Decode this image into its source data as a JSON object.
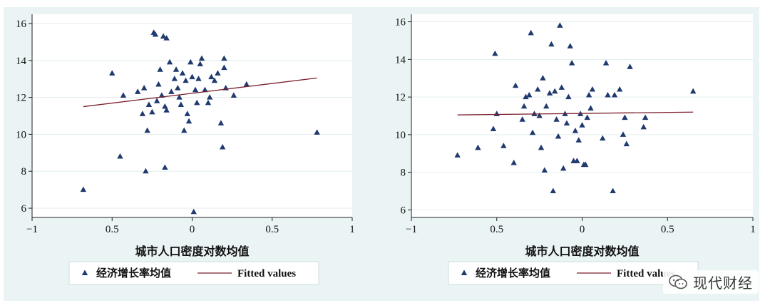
{
  "chart_data": [
    {
      "type": "scatter",
      "xlabel": "城市人口密度对数均值",
      "ylabel": "",
      "xlim": [
        -1,
        1
      ],
      "ylim": [
        5.5,
        16.5
      ],
      "xticks": [
        "−1",
        "0.5",
        "0",
        "0.5",
        "1"
      ],
      "yticks": [
        "6",
        "8",
        "10",
        "12",
        "14",
        "16"
      ],
      "legend_position": "bottom",
      "series": [
        {
          "name": "经济增长率均值",
          "kind": "scatter",
          "color": "#1f3a6e",
          "points": [
            [
              -0.68,
              7.0
            ],
            [
              -0.5,
              13.3
            ],
            [
              -0.45,
              8.8
            ],
            [
              -0.43,
              12.1
            ],
            [
              -0.34,
              12.3
            ],
            [
              -0.31,
              11.1
            ],
            [
              -0.3,
              12.5
            ],
            [
              -0.29,
              8.0
            ],
            [
              -0.28,
              10.2
            ],
            [
              -0.27,
              11.6
            ],
            [
              -0.25,
              11.2
            ],
            [
              -0.24,
              15.5
            ],
            [
              -0.23,
              15.4
            ],
            [
              -0.22,
              11.8
            ],
            [
              -0.21,
              12.7
            ],
            [
              -0.2,
              13.5
            ],
            [
              -0.19,
              12.1
            ],
            [
              -0.18,
              15.3
            ],
            [
              -0.17,
              11.5
            ],
            [
              -0.17,
              8.2
            ],
            [
              -0.16,
              15.2
            ],
            [
              -0.16,
              11.3
            ],
            [
              -0.14,
              13.9
            ],
            [
              -0.13,
              12.3
            ],
            [
              -0.11,
              13.0
            ],
            [
              -0.1,
              13.5
            ],
            [
              -0.09,
              12.5
            ],
            [
              -0.08,
              12.0
            ],
            [
              -0.07,
              11.6
            ],
            [
              -0.06,
              13.3
            ],
            [
              -0.05,
              10.2
            ],
            [
              -0.04,
              12.9
            ],
            [
              -0.03,
              11.1
            ],
            [
              -0.02,
              10.7
            ],
            [
              -0.01,
              13.9
            ],
            [
              0.0,
              13.1
            ],
            [
              0.01,
              5.8
            ],
            [
              0.02,
              12.4
            ],
            [
              0.03,
              11.7
            ],
            [
              0.04,
              13.0
            ],
            [
              0.05,
              13.8
            ],
            [
              0.06,
              14.1
            ],
            [
              0.08,
              12.4
            ],
            [
              0.1,
              11.7
            ],
            [
              0.11,
              12.0
            ],
            [
              0.12,
              13.1
            ],
            [
              0.14,
              12.9
            ],
            [
              0.16,
              13.3
            ],
            [
              0.18,
              10.6
            ],
            [
              0.19,
              9.3
            ],
            [
              0.2,
              13.6
            ],
            [
              0.2,
              14.1
            ],
            [
              0.21,
              12.5
            ],
            [
              0.26,
              12.1
            ],
            [
              0.34,
              12.7
            ],
            [
              0.78,
              10.1
            ]
          ]
        },
        {
          "name": "Fitted values",
          "kind": "line",
          "color": "#7a1f2b",
          "points": [
            [
              -0.68,
              11.5
            ],
            [
              0.78,
              13.05
            ]
          ]
        }
      ]
    },
    {
      "type": "scatter",
      "xlabel": "城市人口密度对数均值",
      "ylabel": "",
      "xlim": [
        -1,
        1
      ],
      "ylim": [
        5.6,
        16.4
      ],
      "xticks": [
        "−1",
        "0.5",
        "0",
        "0.5",
        "1"
      ],
      "yticks": [
        "6",
        "8",
        "10",
        "12",
        "14",
        "16"
      ],
      "legend_position": "bottom",
      "series": [
        {
          "name": "经济增长率均值",
          "kind": "scatter",
          "color": "#1f3a6e",
          "points": [
            [
              -0.73,
              8.9
            ],
            [
              -0.61,
              9.3
            ],
            [
              -0.52,
              10.3
            ],
            [
              -0.51,
              14.3
            ],
            [
              -0.5,
              11.1
            ],
            [
              -0.46,
              9.4
            ],
            [
              -0.4,
              8.5
            ],
            [
              -0.39,
              12.6
            ],
            [
              -0.35,
              10.8
            ],
            [
              -0.34,
              11.5
            ],
            [
              -0.33,
              12.0
            ],
            [
              -0.31,
              12.1
            ],
            [
              -0.3,
              15.4
            ],
            [
              -0.29,
              10.1
            ],
            [
              -0.28,
              11.1
            ],
            [
              -0.26,
              12.4
            ],
            [
              -0.25,
              11.0
            ],
            [
              -0.24,
              9.3
            ],
            [
              -0.23,
              13.0
            ],
            [
              -0.22,
              8.1
            ],
            [
              -0.21,
              11.5
            ],
            [
              -0.19,
              12.2
            ],
            [
              -0.18,
              14.8
            ],
            [
              -0.17,
              7.0
            ],
            [
              -0.16,
              12.3
            ],
            [
              -0.15,
              10.8
            ],
            [
              -0.14,
              9.9
            ],
            [
              -0.13,
              15.8
            ],
            [
              -0.12,
              12.5
            ],
            [
              -0.11,
              8.2
            ],
            [
              -0.1,
              11.1
            ],
            [
              -0.09,
              10.6
            ],
            [
              -0.08,
              12.0
            ],
            [
              -0.07,
              14.7
            ],
            [
              -0.06,
              13.8
            ],
            [
              -0.05,
              8.6
            ],
            [
              -0.04,
              10.2
            ],
            [
              -0.03,
              8.6
            ],
            [
              -0.02,
              9.7
            ],
            [
              -0.01,
              11.1
            ],
            [
              0.0,
              10.5
            ],
            [
              0.01,
              8.4
            ],
            [
              0.02,
              8.4
            ],
            [
              0.03,
              10.9
            ],
            [
              0.04,
              12.1
            ],
            [
              0.05,
              11.4
            ],
            [
              0.06,
              12.4
            ],
            [
              0.12,
              9.8
            ],
            [
              0.14,
              13.8
            ],
            [
              0.15,
              12.1
            ],
            [
              0.18,
              7.0
            ],
            [
              0.19,
              12.1
            ],
            [
              0.22,
              12.4
            ],
            [
              0.24,
              10.0
            ],
            [
              0.25,
              10.9
            ],
            [
              0.26,
              9.5
            ],
            [
              0.28,
              13.6
            ],
            [
              0.36,
              10.4
            ],
            [
              0.37,
              10.9
            ],
            [
              0.65,
              12.3
            ]
          ]
        },
        {
          "name": "Fitted values",
          "kind": "line",
          "color": "#7a1f2b",
          "points": [
            [
              -0.73,
              11.05
            ],
            [
              0.65,
              11.2
            ]
          ]
        }
      ]
    }
  ],
  "watermark": {
    "text": "现代财经",
    "icon": "wechat-icon"
  }
}
